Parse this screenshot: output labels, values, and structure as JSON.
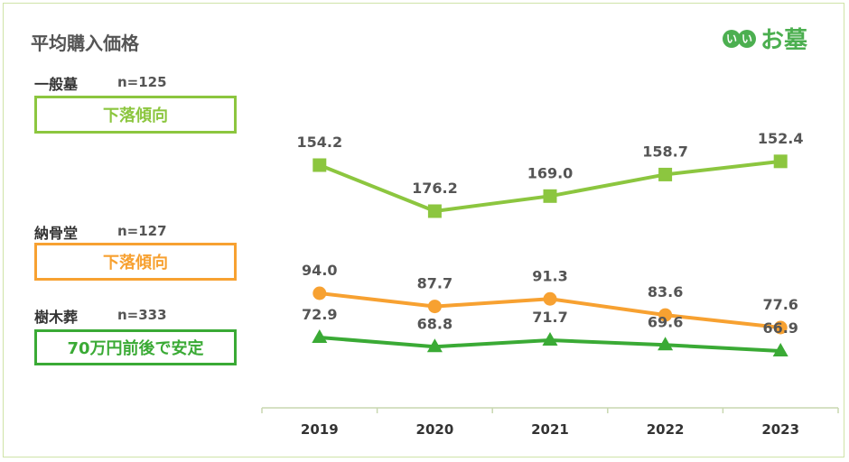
{
  "header": {
    "title": "平均購入価格"
  },
  "logo": {
    "badge_chars": [
      "い",
      "い"
    ],
    "text": "お墓",
    "color": "#4caf50"
  },
  "chart_data": {
    "type": "line",
    "x": [
      "2019",
      "2020",
      "2021",
      "2022",
      "2023"
    ],
    "series": [
      {
        "name": "一般墓",
        "n_label": "n=125",
        "trend": "下落傾向",
        "color": "#8cc63f",
        "marker": "square",
        "values": [
          154.2,
          176.2,
          169.0,
          158.7,
          152.4
        ],
        "labels": [
          "154.2",
          "176.2",
          "169.0",
          "158.7",
          "152.4"
        ]
      },
      {
        "name": "納骨堂",
        "n_label": "n=127",
        "trend": "下落傾向",
        "color": "#f7a131",
        "marker": "circle",
        "values": [
          94.0,
          87.7,
          91.3,
          83.6,
          77.6
        ],
        "labels": [
          "94.0",
          "87.7",
          "91.3",
          "83.6",
          "77.6"
        ]
      },
      {
        "name": "樹木葬",
        "n_label": "n=333",
        "trend": "70万円前後で安定",
        "color": "#3aaa35",
        "marker": "triangle",
        "values": [
          72.9,
          68.8,
          71.7,
          69.6,
          66.9
        ],
        "labels": [
          "72.9",
          "68.8",
          "71.7",
          "69.6",
          "66.9"
        ]
      }
    ],
    "ylim": [
      60,
      190
    ],
    "grid": false,
    "legend": "left"
  }
}
